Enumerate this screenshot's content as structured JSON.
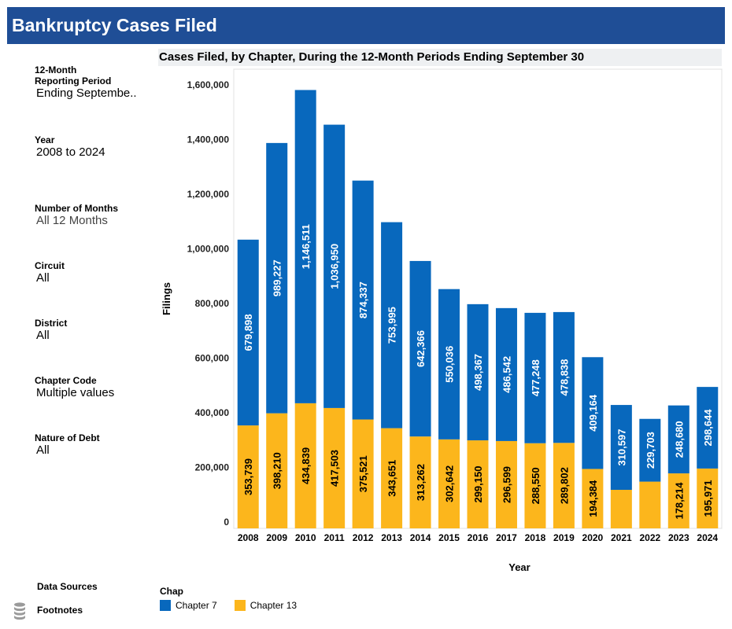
{
  "header": {
    "title": "Bankruptcy Cases Filed"
  },
  "filters": [
    {
      "label": "12-Month Reporting Period",
      "value": "Ending Septembe.."
    },
    {
      "label": "Year",
      "value": "2008 to 2024"
    },
    {
      "label": "Number of Months",
      "value": "All 12 Months"
    },
    {
      "label": "Circuit",
      "value": "All"
    },
    {
      "label": "District",
      "value": "All"
    },
    {
      "label": "Chapter Code",
      "value": "Multiple values"
    },
    {
      "label": "Nature of Debt",
      "value": "All"
    }
  ],
  "footer": {
    "sources": "Data Sources",
    "footnotes": "Footnotes"
  },
  "legend": {
    "title": "Chap",
    "items": [
      {
        "label": "Chapter 7",
        "color": "#0868bd"
      },
      {
        "label": "Chapter 13",
        "color": "#fcb61c"
      }
    ]
  },
  "chart_data": {
    "type": "bar",
    "stacked": true,
    "title": "Cases Filed, by Chapter, During the 12-Month Periods Ending September 30",
    "xlabel": "Year",
    "ylabel": "Filings",
    "ylim": [
      0,
      1600000
    ],
    "yticks": [
      0,
      200000,
      400000,
      600000,
      800000,
      1000000,
      1200000,
      1400000,
      1600000
    ],
    "ytick_labels": [
      "0",
      "200,000",
      "400,000",
      "600,000",
      "800,000",
      "1,000,000",
      "1,200,000",
      "1,400,000",
      "1,600,000"
    ],
    "categories": [
      "2008",
      "2009",
      "2010",
      "2011",
      "2012",
      "2013",
      "2014",
      "2015",
      "2016",
      "2017",
      "2018",
      "2019",
      "2020",
      "2021",
      "2022",
      "2023",
      "2024"
    ],
    "series": [
      {
        "name": "Chapter 13",
        "color": "#fcb61c",
        "label_color": "#000000",
        "values": [
          353739,
          398210,
          434839,
          417503,
          375521,
          343651,
          313262,
          302642,
          299150,
          296599,
          288550,
          289802,
          194384,
          118000,
          148000,
          178214,
          195971
        ],
        "labels": [
          "353,739",
          "398,210",
          "434,839",
          "417,503",
          "375,521",
          "343,651",
          "313,262",
          "302,642",
          "299,150",
          "296,599",
          "288,550",
          "289,802",
          "194,384",
          "",
          "",
          "178,214",
          "195,971"
        ]
      },
      {
        "name": "Chapter 7",
        "color": "#0868bd",
        "label_color": "#ffffff",
        "values": [
          679898,
          989227,
          1146511,
          1036950,
          874337,
          753995,
          642366,
          550036,
          498367,
          486542,
          477248,
          478838,
          409164,
          310597,
          229703,
          248680,
          298644
        ],
        "labels": [
          "679,898",
          "989,227",
          "1,146,511",
          "1,036,950",
          "874,337",
          "753,995",
          "642,366",
          "550,036",
          "498,367",
          "486,542",
          "477,248",
          "478,838",
          "409,164",
          "310,597",
          "229,703",
          "248,680",
          "298,644"
        ]
      }
    ]
  }
}
